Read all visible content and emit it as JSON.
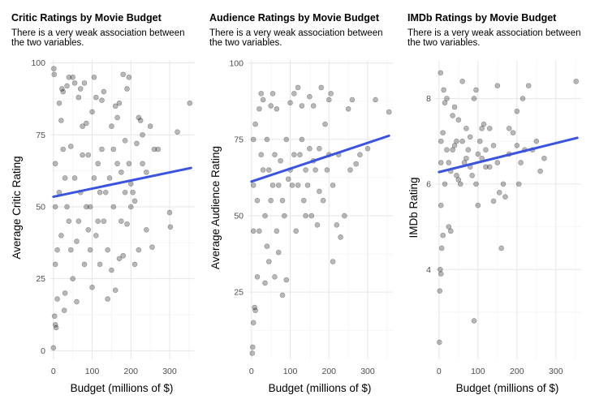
{
  "figure": {
    "colors": {
      "point": "#000000",
      "trend": "#3a53e0",
      "grid_major": "#e6e6e6",
      "grid_minor": "#f3f3f3"
    }
  },
  "chart_data": [
    {
      "type": "scatter",
      "title": "Critic Ratings by Movie Budget",
      "subtitle_lines": [
        "There is a very weak association between",
        "the two variables."
      ],
      "xlabel": "Budget (millions of $)",
      "ylabel": "Average Critic Rating",
      "xlim": [
        -8,
        365
      ],
      "ylim": [
        -3,
        101
      ],
      "xticks": [
        0,
        100,
        200,
        300
      ],
      "xtick_labels": [
        "0",
        "100",
        "200",
        "300"
      ],
      "yticks": [
        0,
        25,
        50,
        75,
        100
      ],
      "ytick_labels": [
        "0",
        "25",
        "50",
        "75",
        "100"
      ],
      "trend": {
        "x": [
          0,
          355
        ],
        "y": [
          53.5,
          63.5
        ]
      },
      "points": [
        [
          0,
          1
        ],
        [
          1,
          98
        ],
        [
          2,
          96
        ],
        [
          3,
          12
        ],
        [
          5,
          9
        ],
        [
          7,
          8
        ],
        [
          10,
          18
        ],
        [
          15,
          86
        ],
        [
          20,
          80
        ],
        [
          22,
          91
        ],
        [
          25,
          90
        ],
        [
          28,
          14
        ],
        [
          30,
          20
        ],
        [
          35,
          92
        ],
        [
          40,
          95
        ],
        [
          45,
          71
        ],
        [
          50,
          95
        ],
        [
          55,
          93
        ],
        [
          60,
          17
        ],
        [
          65,
          88
        ],
        [
          70,
          91
        ],
        [
          75,
          78
        ],
        [
          80,
          93
        ],
        [
          85,
          79
        ],
        [
          90,
          68
        ],
        [
          95,
          50
        ],
        [
          100,
          83
        ],
        [
          105,
          95
        ],
        [
          110,
          88
        ],
        [
          115,
          65
        ],
        [
          120,
          55
        ],
        [
          125,
          87
        ],
        [
          130,
          90
        ],
        [
          140,
          18
        ],
        [
          150,
          78
        ],
        [
          155,
          70
        ],
        [
          160,
          85
        ],
        [
          165,
          81
        ],
        [
          170,
          86
        ],
        [
          175,
          62
        ],
        [
          180,
          96
        ],
        [
          185,
          73
        ],
        [
          190,
          91
        ],
        [
          195,
          95
        ],
        [
          200,
          50
        ],
        [
          205,
          55
        ],
        [
          210,
          52
        ],
        [
          215,
          72
        ],
        [
          220,
          81
        ],
        [
          225,
          80
        ],
        [
          230,
          75
        ],
        [
          240,
          62
        ],
        [
          250,
          78
        ],
        [
          255,
          36
        ],
        [
          260,
          70
        ],
        [
          270,
          70
        ],
        [
          300,
          48
        ],
        [
          302,
          43
        ],
        [
          320,
          76
        ],
        [
          352,
          86
        ],
        [
          10,
          35
        ],
        [
          20,
          40
        ],
        [
          30,
          60
        ],
        [
          40,
          45
        ],
        [
          50,
          25
        ],
        [
          60,
          38
        ],
        [
          70,
          55
        ],
        [
          80,
          30
        ],
        [
          90,
          42
        ],
        [
          100,
          22
        ],
        [
          110,
          40
        ],
        [
          120,
          30
        ],
        [
          130,
          45
        ],
        [
          140,
          35
        ],
        [
          150,
          28
        ],
        [
          160,
          21
        ],
        [
          170,
          32
        ],
        [
          180,
          33
        ],
        [
          190,
          44
        ],
        [
          200,
          58
        ],
        [
          210,
          30
        ],
        [
          220,
          35
        ],
        [
          230,
          65
        ],
        [
          240,
          42
        ],
        [
          5,
          50
        ],
        [
          5,
          65
        ],
        [
          5,
          30
        ],
        [
          15,
          55
        ],
        [
          25,
          70
        ],
        [
          35,
          50
        ],
        [
          45,
          35
        ],
        [
          55,
          60
        ],
        [
          65,
          45
        ],
        [
          75,
          68
        ],
        [
          85,
          50
        ],
        [
          95,
          35
        ],
        [
          105,
          60
        ],
        [
          115,
          45
        ],
        [
          125,
          70
        ],
        [
          135,
          55
        ],
        [
          145,
          60
        ],
        [
          155,
          50
        ],
        [
          165,
          65
        ],
        [
          175,
          45
        ],
        [
          185,
          55
        ],
        [
          195,
          65
        ]
      ]
    },
    {
      "type": "scatter",
      "title": "Audience Ratings by Movie Budget",
      "subtitle_lines": [
        "There is a very weak association between",
        "the two variables."
      ],
      "xlabel": "Budget (millions of $)",
      "ylabel": "Average Audience Rating",
      "xlim": [
        -8,
        365
      ],
      "ylim": [
        3,
        101
      ],
      "xticks": [
        0,
        100,
        200,
        300
      ],
      "xtick_labels": [
        "0",
        "100",
        "200",
        "300"
      ],
      "yticks": [
        25,
        50,
        75,
        100
      ],
      "ytick_labels": [
        "25",
        "50",
        "75",
        "100"
      ],
      "trend": {
        "x": [
          0,
          355
        ],
        "y": [
          61.2,
          76.2
        ]
      },
      "points": [
        [
          2,
          5
        ],
        [
          3,
          7
        ],
        [
          5,
          15
        ],
        [
          8,
          20
        ],
        [
          10,
          19
        ],
        [
          15,
          30
        ],
        [
          20,
          85
        ],
        [
          25,
          90
        ],
        [
          30,
          88
        ],
        [
          35,
          28
        ],
        [
          40,
          40
        ],
        [
          45,
          35
        ],
        [
          50,
          86
        ],
        [
          55,
          90
        ],
        [
          60,
          30
        ],
        [
          65,
          85
        ],
        [
          70,
          38
        ],
        [
          80,
          24
        ],
        [
          90,
          29
        ],
        [
          100,
          87
        ],
        [
          110,
          90
        ],
        [
          120,
          92
        ],
        [
          130,
          86
        ],
        [
          140,
          50
        ],
        [
          150,
          89
        ],
        [
          160,
          86
        ],
        [
          170,
          47
        ],
        [
          175,
          58
        ],
        [
          180,
          92
        ],
        [
          190,
          80
        ],
        [
          200,
          88
        ],
        [
          205,
          90
        ],
        [
          210,
          35
        ],
        [
          220,
          47
        ],
        [
          230,
          43
        ],
        [
          240,
          50
        ],
        [
          250,
          85
        ],
        [
          255,
          65
        ],
        [
          260,
          88
        ],
        [
          270,
          67
        ],
        [
          280,
          70
        ],
        [
          300,
          72
        ],
        [
          320,
          88
        ],
        [
          355,
          84
        ],
        [
          5,
          60
        ],
        [
          5,
          75
        ],
        [
          5,
          45
        ],
        [
          15,
          55
        ],
        [
          25,
          70
        ],
        [
          35,
          50
        ],
        [
          45,
          65
        ],
        [
          55,
          60
        ],
        [
          65,
          45
        ],
        [
          75,
          68
        ],
        [
          85,
          50
        ],
        [
          95,
          62
        ],
        [
          105,
          60
        ],
        [
          115,
          45
        ],
        [
          125,
          70
        ],
        [
          135,
          55
        ],
        [
          145,
          60
        ],
        [
          155,
          50
        ],
        [
          165,
          65
        ],
        [
          175,
          72
        ],
        [
          185,
          55
        ],
        [
          195,
          65
        ],
        [
          10,
          80
        ],
        [
          20,
          45
        ],
        [
          30,
          65
        ],
        [
          40,
          75
        ],
        [
          50,
          55
        ],
        [
          60,
          70
        ],
        [
          70,
          60
        ],
        [
          80,
          55
        ],
        [
          90,
          75
        ],
        [
          100,
          65
        ],
        [
          110,
          70
        ],
        [
          120,
          60
        ],
        [
          130,
          75
        ],
        [
          140,
          65
        ],
        [
          150,
          72
        ],
        [
          160,
          68
        ],
        [
          200,
          70
        ],
        [
          210,
          60
        ],
        [
          225,
          70
        ]
      ]
    },
    {
      "type": "scatter",
      "title": "IMDb Ratings by Movie Budget",
      "subtitle_lines": [
        "There is a very weak association between",
        "the two variables."
      ],
      "xlabel": "Budget (millions of $)",
      "ylabel": "IMDb Rating",
      "xlim": [
        -8,
        365
      ],
      "ylim": [
        1.9,
        8.9
      ],
      "xticks": [
        0,
        100,
        200,
        300
      ],
      "xtick_labels": [
        "0",
        "100",
        "200",
        "300"
      ],
      "yticks": [
        4,
        6,
        8
      ],
      "ytick_labels": [
        "4",
        "6",
        "8"
      ],
      "trend": {
        "x": [
          0,
          355
        ],
        "y": [
          6.28,
          7.08
        ]
      },
      "points": [
        [
          1,
          2.3
        ],
        [
          2,
          3.5
        ],
        [
          3,
          4.0
        ],
        [
          5,
          3.9
        ],
        [
          4,
          8.6
        ],
        [
          7,
          4.5
        ],
        [
          10,
          4.8
        ],
        [
          12,
          8.2
        ],
        [
          15,
          7.9
        ],
        [
          20,
          8.0
        ],
        [
          25,
          5.0
        ],
        [
          30,
          4.9
        ],
        [
          35,
          7.6
        ],
        [
          40,
          7.8
        ],
        [
          45,
          7.0
        ],
        [
          50,
          7.5
        ],
        [
          60,
          8.4
        ],
        [
          70,
          7.3
        ],
        [
          80,
          6.4
        ],
        [
          90,
          8.0
        ],
        [
          95,
          8.2
        ],
        [
          100,
          5.5
        ],
        [
          105,
          7.0
        ],
        [
          110,
          6.6
        ],
        [
          115,
          7.4
        ],
        [
          120,
          6.4
        ],
        [
          130,
          7.3
        ],
        [
          140,
          5.6
        ],
        [
          150,
          8.3
        ],
        [
          155,
          5.8
        ],
        [
          160,
          4.5
        ],
        [
          165,
          6.0
        ],
        [
          170,
          5.7
        ],
        [
          180,
          7.3
        ],
        [
          190,
          7.2
        ],
        [
          200,
          7.7
        ],
        [
          205,
          6.0
        ],
        [
          210,
          6.5
        ],
        [
          215,
          8.0
        ],
        [
          220,
          6.8
        ],
        [
          230,
          8.3
        ],
        [
          240,
          6.8
        ],
        [
          250,
          7.0
        ],
        [
          260,
          6.3
        ],
        [
          270,
          6.6
        ],
        [
          352,
          8.4
        ],
        [
          5,
          5.5
        ],
        [
          5,
          6.5
        ],
        [
          5,
          7.0
        ],
        [
          15,
          6.0
        ],
        [
          25,
          6.5
        ],
        [
          35,
          6.8
        ],
        [
          45,
          6.2
        ],
        [
          55,
          6.0
        ],
        [
          65,
          6.5
        ],
        [
          75,
          6.8
        ],
        [
          85,
          6.2
        ],
        [
          95,
          6.0
        ],
        [
          10,
          7.2
        ],
        [
          20,
          6.8
        ],
        [
          30,
          6.3
        ],
        [
          40,
          6.9
        ],
        [
          50,
          6.1
        ],
        [
          60,
          7.0
        ],
        [
          70,
          6.6
        ],
        [
          80,
          7.1
        ],
        [
          90,
          2.8
        ],
        [
          100,
          6.7
        ],
        [
          110,
          7.3
        ],
        [
          120,
          6.8
        ],
        [
          130,
          6.4
        ],
        [
          140,
          6.9
        ],
        [
          150,
          6.5
        ],
        [
          180,
          6.7
        ],
        [
          200,
          6.9
        ]
      ]
    }
  ]
}
